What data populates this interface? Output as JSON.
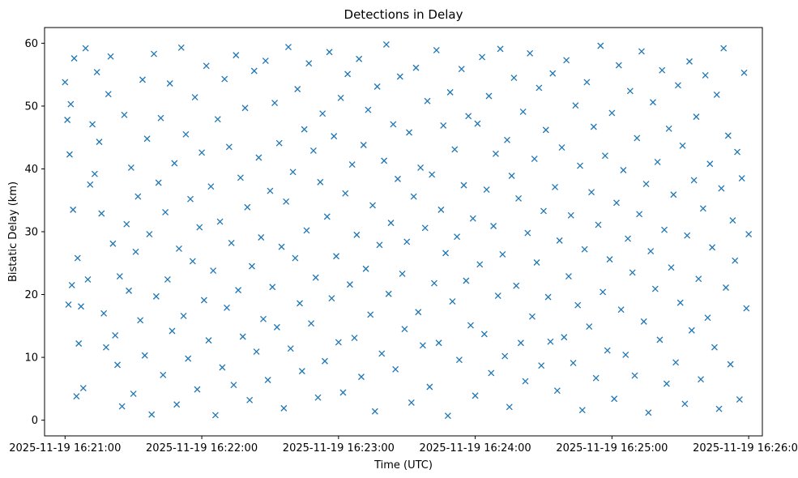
{
  "chart_data": {
    "type": "scatter",
    "title": "Detections in Delay",
    "xlabel": "Time (UTC)",
    "ylabel": "Bistatic Delay (km)",
    "x_unit": "seconds after 2025-11-19 16:21:00 UTC",
    "xlim": [
      -9,
      306
    ],
    "ylim": [
      -2.5,
      62.5
    ],
    "xticks": [
      {
        "value": 0,
        "label": "2025-11-19 16:21:00"
      },
      {
        "value": 60,
        "label": "2025-11-19 16:22:00"
      },
      {
        "value": 120,
        "label": "2025-11-19 16:23:00"
      },
      {
        "value": 180,
        "label": "2025-11-19 16:24:00"
      },
      {
        "value": 240,
        "label": "2025-11-19 16:25:00"
      },
      {
        "value": 300,
        "label": "2025-11-19 16:26:00"
      }
    ],
    "yticks": [
      {
        "value": 0,
        "label": "0"
      },
      {
        "value": 10,
        "label": "10"
      },
      {
        "value": 20,
        "label": "20"
      },
      {
        "value": 30,
        "label": "30"
      },
      {
        "value": 40,
        "label": "40"
      },
      {
        "value": 50,
        "label": "50"
      },
      {
        "value": 60,
        "label": "60"
      }
    ],
    "marker": "x",
    "color": "#1f77b4",
    "series": [
      {
        "name": "detections",
        "points": [
          [
            0,
            53.8
          ],
          [
            1,
            47.8
          ],
          [
            1.5,
            18.4
          ],
          [
            2,
            42.3
          ],
          [
            2.5,
            50.3
          ],
          [
            3,
            21.5
          ],
          [
            3.5,
            33.5
          ],
          [
            4,
            57.6
          ],
          [
            5,
            3.8
          ],
          [
            5.5,
            25.8
          ],
          [
            6,
            12.2
          ],
          [
            7,
            18.1
          ],
          [
            8,
            5.1
          ],
          [
            9,
            59.2
          ],
          [
            10,
            22.4
          ],
          [
            11,
            37.5
          ],
          [
            12,
            47.1
          ],
          [
            13,
            39.2
          ],
          [
            14,
            55.4
          ],
          [
            15,
            44.3
          ],
          [
            16,
            32.9
          ],
          [
            17,
            17.0
          ],
          [
            18,
            11.6
          ],
          [
            19,
            51.9
          ],
          [
            20,
            57.9
          ],
          [
            21,
            28.1
          ],
          [
            22,
            13.5
          ],
          [
            23,
            8.8
          ],
          [
            24,
            22.9
          ],
          [
            25,
            2.2
          ],
          [
            26,
            48.6
          ],
          [
            27,
            31.2
          ],
          [
            28,
            20.6
          ],
          [
            29,
            40.2
          ],
          [
            30,
            4.2
          ],
          [
            31,
            26.8
          ],
          [
            32,
            35.6
          ],
          [
            33,
            15.9
          ],
          [
            34,
            54.2
          ],
          [
            35,
            10.3
          ],
          [
            36,
            44.8
          ],
          [
            37,
            29.6
          ],
          [
            38,
            0.9
          ],
          [
            39,
            58.3
          ],
          [
            40,
            19.7
          ],
          [
            41,
            37.8
          ],
          [
            42,
            48.1
          ],
          [
            43,
            7.2
          ],
          [
            44,
            33.1
          ],
          [
            45,
            22.4
          ],
          [
            46,
            53.6
          ],
          [
            47,
            14.2
          ],
          [
            48,
            40.9
          ],
          [
            49,
            2.5
          ],
          [
            50,
            27.3
          ],
          [
            51,
            59.3
          ],
          [
            52,
            16.6
          ],
          [
            53,
            45.5
          ],
          [
            54,
            9.8
          ],
          [
            55,
            35.2
          ],
          [
            56,
            25.3
          ],
          [
            57,
            51.4
          ],
          [
            58,
            4.9
          ],
          [
            59,
            30.7
          ],
          [
            60,
            42.6
          ],
          [
            61,
            19.1
          ],
          [
            62,
            56.4
          ],
          [
            63,
            12.7
          ],
          [
            64,
            37.2
          ],
          [
            65,
            23.8
          ],
          [
            66,
            0.8
          ],
          [
            67,
            47.9
          ],
          [
            68,
            31.6
          ],
          [
            69,
            8.4
          ],
          [
            70,
            54.3
          ],
          [
            71,
            17.9
          ],
          [
            72,
            43.5
          ],
          [
            73,
            28.2
          ],
          [
            74,
            5.6
          ],
          [
            75,
            58.1
          ],
          [
            76,
            20.7
          ],
          [
            77,
            38.6
          ],
          [
            78,
            13.3
          ],
          [
            79,
            49.7
          ],
          [
            80,
            33.9
          ],
          [
            81,
            3.2
          ],
          [
            82,
            24.5
          ],
          [
            83,
            55.6
          ],
          [
            84,
            10.9
          ],
          [
            85,
            41.8
          ],
          [
            86,
            29.1
          ],
          [
            87,
            16.1
          ],
          [
            88,
            57.2
          ],
          [
            89,
            6.4
          ],
          [
            90,
            36.5
          ],
          [
            91,
            21.2
          ],
          [
            92,
            50.5
          ],
          [
            93,
            14.8
          ],
          [
            94,
            44.1
          ],
          [
            95,
            27.6
          ],
          [
            96,
            1.9
          ],
          [
            97,
            34.8
          ],
          [
            98,
            59.4
          ],
          [
            99,
            11.4
          ],
          [
            100,
            39.5
          ],
          [
            101,
            25.8
          ],
          [
            102,
            52.7
          ],
          [
            103,
            18.6
          ],
          [
            104,
            7.8
          ],
          [
            105,
            46.3
          ],
          [
            106,
            30.2
          ],
          [
            107,
            56.8
          ],
          [
            108,
            15.4
          ],
          [
            109,
            42.9
          ],
          [
            110,
            22.7
          ],
          [
            111,
            3.6
          ],
          [
            112,
            37.9
          ],
          [
            113,
            48.8
          ],
          [
            114,
            9.4
          ],
          [
            115,
            32.4
          ],
          [
            116,
            58.6
          ],
          [
            117,
            19.4
          ],
          [
            118,
            45.2
          ],
          [
            119,
            26.1
          ],
          [
            120,
            12.4
          ],
          [
            121,
            51.3
          ],
          [
            122,
            4.4
          ],
          [
            123,
            36.1
          ],
          [
            124,
            55.1
          ],
          [
            125,
            21.6
          ],
          [
            126,
            40.7
          ],
          [
            127,
            13.1
          ],
          [
            128,
            29.5
          ],
          [
            129,
            57.5
          ],
          [
            130,
            6.9
          ],
          [
            131,
            43.8
          ],
          [
            132,
            24.1
          ],
          [
            133,
            49.4
          ],
          [
            134,
            16.8
          ],
          [
            135,
            34.2
          ],
          [
            136,
            1.4
          ],
          [
            137,
            53.1
          ],
          [
            138,
            27.9
          ],
          [
            139,
            10.6
          ],
          [
            140,
            41.3
          ],
          [
            141,
            59.8
          ],
          [
            142,
            20.1
          ],
          [
            143,
            31.4
          ],
          [
            144,
            47.1
          ],
          [
            145,
            8.1
          ],
          [
            146,
            38.4
          ],
          [
            147,
            54.7
          ],
          [
            148,
            23.3
          ],
          [
            149,
            14.5
          ],
          [
            150,
            28.4
          ],
          [
            151,
            45.8
          ],
          [
            152,
            2.8
          ],
          [
            153,
            35.6
          ],
          [
            154,
            56.1
          ],
          [
            155,
            17.2
          ],
          [
            156,
            40.2
          ],
          [
            157,
            11.9
          ],
          [
            158,
            30.6
          ],
          [
            159,
            50.8
          ],
          [
            160,
            5.3
          ],
          [
            161,
            39.1
          ],
          [
            162,
            21.8
          ],
          [
            163,
            58.9
          ],
          [
            164,
            12.3
          ],
          [
            165,
            33.5
          ],
          [
            166,
            46.9
          ],
          [
            167,
            26.6
          ],
          [
            168,
            0.7
          ],
          [
            169,
            52.2
          ],
          [
            170,
            18.9
          ],
          [
            171,
            43.1
          ],
          [
            172,
            29.2
          ],
          [
            173,
            9.6
          ],
          [
            174,
            55.9
          ],
          [
            175,
            37.4
          ],
          [
            176,
            22.2
          ],
          [
            177,
            48.4
          ],
          [
            178,
            15.1
          ],
          [
            179,
            32.1
          ],
          [
            180,
            3.9
          ],
          [
            181,
            47.2
          ],
          [
            182,
            24.8
          ],
          [
            183,
            57.8
          ],
          [
            184,
            13.7
          ],
          [
            185,
            36.7
          ],
          [
            186,
            51.6
          ],
          [
            187,
            7.5
          ],
          [
            188,
            30.9
          ],
          [
            189,
            42.4
          ],
          [
            190,
            19.8
          ],
          [
            191,
            59.1
          ],
          [
            192,
            26.4
          ],
          [
            193,
            10.2
          ],
          [
            194,
            44.6
          ],
          [
            195,
            2.1
          ],
          [
            196,
            38.9
          ],
          [
            197,
            54.5
          ],
          [
            198,
            21.4
          ],
          [
            199,
            35.3
          ],
          [
            200,
            12.3
          ],
          [
            201,
            49.1
          ],
          [
            202,
            6.2
          ],
          [
            203,
            29.8
          ],
          [
            204,
            58.4
          ],
          [
            205,
            16.5
          ],
          [
            206,
            41.6
          ],
          [
            207,
            25.1
          ],
          [
            208,
            52.9
          ],
          [
            209,
            8.7
          ],
          [
            210,
            33.3
          ],
          [
            211,
            46.2
          ],
          [
            212,
            19.6
          ],
          [
            213,
            12.5
          ],
          [
            214,
            55.2
          ],
          [
            215,
            37.1
          ],
          [
            216,
            4.7
          ],
          [
            217,
            28.6
          ],
          [
            218,
            43.4
          ],
          [
            219,
            13.2
          ],
          [
            220,
            57.3
          ],
          [
            221,
            22.9
          ],
          [
            222,
            32.6
          ],
          [
            223,
            9.1
          ],
          [
            224,
            50.1
          ],
          [
            225,
            18.3
          ],
          [
            226,
            40.5
          ],
          [
            227,
            1.6
          ],
          [
            228,
            27.2
          ],
          [
            229,
            53.8
          ],
          [
            230,
            14.9
          ],
          [
            231,
            36.3
          ],
          [
            232,
            46.7
          ],
          [
            233,
            6.7
          ],
          [
            234,
            31.1
          ],
          [
            235,
            59.6
          ],
          [
            236,
            20.4
          ],
          [
            237,
            42.1
          ],
          [
            238,
            11.1
          ],
          [
            239,
            25.6
          ],
          [
            240,
            48.9
          ],
          [
            241,
            3.4
          ],
          [
            242,
            34.6
          ],
          [
            243,
            56.5
          ],
          [
            244,
            17.6
          ],
          [
            245,
            39.8
          ],
          [
            246,
            10.4
          ],
          [
            247,
            28.9
          ],
          [
            248,
            52.4
          ],
          [
            249,
            23.5
          ],
          [
            250,
            7.1
          ],
          [
            251,
            44.9
          ],
          [
            252,
            32.8
          ],
          [
            253,
            58.7
          ],
          [
            254,
            15.7
          ],
          [
            255,
            37.6
          ],
          [
            256,
            1.2
          ],
          [
            257,
            26.9
          ],
          [
            258,
            50.6
          ],
          [
            259,
            20.9
          ],
          [
            260,
            41.1
          ],
          [
            261,
            12.8
          ],
          [
            262,
            55.7
          ],
          [
            263,
            30.3
          ],
          [
            264,
            5.8
          ],
          [
            265,
            46.4
          ],
          [
            266,
            24.3
          ],
          [
            267,
            35.9
          ],
          [
            268,
            9.2
          ],
          [
            269,
            53.3
          ],
          [
            270,
            18.7
          ],
          [
            271,
            43.7
          ],
          [
            272,
            2.6
          ],
          [
            273,
            29.4
          ],
          [
            274,
            57.1
          ],
          [
            275,
            14.3
          ],
          [
            276,
            38.2
          ],
          [
            277,
            48.3
          ],
          [
            278,
            22.5
          ],
          [
            279,
            6.5
          ],
          [
            280,
            33.7
          ],
          [
            281,
            54.9
          ],
          [
            282,
            16.3
          ],
          [
            283,
            40.8
          ],
          [
            284,
            27.5
          ],
          [
            285,
            11.6
          ],
          [
            286,
            51.8
          ],
          [
            287,
            1.8
          ],
          [
            288,
            36.9
          ],
          [
            289,
            59.2
          ],
          [
            290,
            21.1
          ],
          [
            291,
            45.3
          ],
          [
            292,
            8.9
          ],
          [
            293,
            31.8
          ],
          [
            294,
            25.4
          ],
          [
            295,
            42.7
          ],
          [
            296,
            3.3
          ],
          [
            297,
            38.5
          ],
          [
            298,
            55.3
          ],
          [
            299,
            17.8
          ],
          [
            300,
            29.6
          ]
        ]
      }
    ]
  }
}
